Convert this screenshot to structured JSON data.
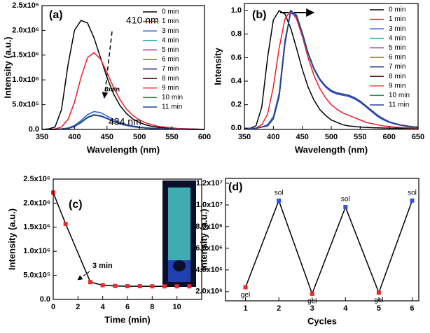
{
  "chart_data": [
    {
      "type": "line",
      "panel_label": "(a)",
      "x_label": "Wavelength (nm)",
      "y_label": "Intensity (a.u.)",
      "annotations": [
        "410 nm",
        "434 nm",
        "3min"
      ],
      "legend": "upper right",
      "x": [
        350,
        360,
        370,
        380,
        390,
        400,
        410,
        420,
        430,
        440,
        450,
        460,
        470,
        480,
        490,
        500,
        510,
        520,
        530,
        540,
        550,
        560,
        570,
        580,
        590,
        600
      ],
      "xlim": [
        350,
        600
      ],
      "xticks": [
        350,
        400,
        450,
        500,
        550,
        600
      ],
      "ylim": [
        0,
        2500000.0
      ],
      "yticks": [
        {
          "value": 0,
          "label": "0.0"
        },
        {
          "value": 500000.0,
          "label": "5.0x10⁵"
        },
        {
          "value": 1000000.0,
          "label": "1.0x10⁶"
        },
        {
          "value": 1500000.0,
          "label": "1.5x10⁶"
        },
        {
          "value": 2000000.0,
          "label": "2.0x10⁶"
        },
        {
          "value": 2500000.0,
          "label": "2.5x10⁶"
        }
      ],
      "series": [
        {
          "name": "0 min",
          "color": "#000000",
          "values": [
            0,
            10000.0,
            50000.0,
            400000.0,
            1300000.0,
            2000000.0,
            2200000.0,
            2150000.0,
            1850000.0,
            1450000.0,
            1050000.0,
            720000.0,
            480000.0,
            320000.0,
            210000.0,
            140000.0,
            90000.0,
            60000.0,
            40000.0,
            30000.0,
            20000.0,
            15000.0,
            10000.0,
            10000.0,
            5000.0,
            0
          ]
        },
        {
          "name": "1 min",
          "color": "#ee1c24",
          "values": [
            0,
            0,
            10000.0,
            50000.0,
            200000.0,
            550000.0,
            1050000.0,
            1450000.0,
            1550000.0,
            1420000.0,
            1150000.0,
            850000.0,
            600000.0,
            410000.0,
            280000.0,
            190000.0,
            130000.0,
            90000.0,
            60000.0,
            45000.0,
            30000.0,
            20000.0,
            15000.0,
            10000.0,
            5000.0,
            0
          ]
        },
        {
          "name": "3 min",
          "color": "#2b55e6",
          "values": [
            0,
            0,
            0,
            10000.0,
            30000.0,
            80000.0,
            180000.0,
            300000.0,
            360000.0,
            340000.0,
            270000.0,
            200000.0,
            140000.0,
            100000.0,
            70000.0,
            50000.0,
            35000.0,
            25000.0,
            18000.0,
            13000.0,
            10000.0,
            7000.0,
            5000.0,
            3000.0,
            2000.0,
            0
          ]
        },
        {
          "name": "4 min",
          "color": "#1aa5a5",
          "values": [
            0,
            0,
            0,
            10000.0,
            20000.0,
            60000.0,
            150000.0,
            250000.0,
            300000.0,
            280000.0,
            230000.0,
            170000.0,
            120000.0,
            85000.0,
            60000.0,
            42000.0,
            30000.0,
            21000.0,
            15000.0,
            11000.0,
            8000.0,
            6000.0,
            4000.0,
            2000.0,
            1000.0,
            0
          ]
        },
        {
          "name": "5 min",
          "color": "#9b30a0",
          "values": [
            0,
            0,
            0,
            10000.0,
            20000.0,
            60000.0,
            140000.0,
            240000.0,
            290000.0,
            270000.0,
            220000.0,
            160000.0,
            110000.0,
            80000.0,
            55000.0,
            40000.0,
            28000.0,
            20000.0,
            14000.0,
            10000.0,
            8000.0,
            5000.0,
            4000.0,
            2000.0,
            1000.0,
            0
          ]
        },
        {
          "name": "6 min",
          "color": "#808000",
          "values": [
            0,
            0,
            0,
            10000.0,
            20000.0,
            60000.0,
            140000.0,
            240000.0,
            290000.0,
            270000.0,
            220000.0,
            160000.0,
            110000.0,
            80000.0,
            55000.0,
            40000.0,
            28000.0,
            20000.0,
            14000.0,
            10000.0,
            8000.0,
            5000.0,
            4000.0,
            2000.0,
            1000.0,
            0
          ]
        },
        {
          "name": "7 min",
          "color": "#1c2a8c",
          "values": [
            0,
            0,
            0,
            10000.0,
            20000.0,
            60000.0,
            140000.0,
            240000.0,
            290000.0,
            270000.0,
            220000.0,
            160000.0,
            110000.0,
            80000.0,
            55000.0,
            40000.0,
            28000.0,
            20000.0,
            14000.0,
            10000.0,
            8000.0,
            5000.0,
            4000.0,
            2000.0,
            1000.0,
            0
          ]
        },
        {
          "name": "8 min",
          "color": "#5a1010",
          "values": [
            0,
            0,
            0,
            10000.0,
            20000.0,
            60000.0,
            140000.0,
            240000.0,
            290000.0,
            270000.0,
            220000.0,
            160000.0,
            110000.0,
            80000.0,
            55000.0,
            40000.0,
            28000.0,
            20000.0,
            14000.0,
            10000.0,
            8000.0,
            5000.0,
            4000.0,
            2000.0,
            1000.0,
            0
          ]
        },
        {
          "name": "9 min",
          "color": "#ff3a3a",
          "values": [
            0,
            0,
            0,
            10000.0,
            20000.0,
            60000.0,
            140000.0,
            240000.0,
            290000.0,
            270000.0,
            220000.0,
            160000.0,
            110000.0,
            80000.0,
            55000.0,
            40000.0,
            28000.0,
            20000.0,
            14000.0,
            10000.0,
            8000.0,
            5000.0,
            4000.0,
            2000.0,
            1000.0,
            0
          ]
        },
        {
          "name": "10 min",
          "color": "#2e8b57",
          "values": [
            0,
            0,
            0,
            10000.0,
            20000.0,
            60000.0,
            140000.0,
            240000.0,
            290000.0,
            270000.0,
            220000.0,
            160000.0,
            110000.0,
            80000.0,
            55000.0,
            40000.0,
            28000.0,
            20000.0,
            14000.0,
            10000.0,
            8000.0,
            5000.0,
            4000.0,
            2000.0,
            1000.0,
            0
          ]
        },
        {
          "name": "11 min",
          "color": "#24408f",
          "values": [
            0,
            0,
            0,
            10000.0,
            20000.0,
            60000.0,
            140000.0,
            240000.0,
            290000.0,
            270000.0,
            220000.0,
            160000.0,
            110000.0,
            80000.0,
            55000.0,
            40000.0,
            28000.0,
            20000.0,
            14000.0,
            10000.0,
            8000.0,
            5000.0,
            4000.0,
            2000.0,
            1000.0,
            0
          ]
        }
      ]
    },
    {
      "type": "line",
      "panel_label": "(b)",
      "x_label": "Wavelength (nm)",
      "y_label": "Intensity",
      "legend": "upper right",
      "x": [
        350,
        360,
        370,
        380,
        390,
        400,
        410,
        420,
        430,
        440,
        450,
        460,
        470,
        480,
        490,
        500,
        510,
        520,
        530,
        540,
        550,
        560,
        570,
        580,
        590,
        600,
        610,
        620,
        630,
        640,
        650
      ],
      "xlim": [
        350,
        650
      ],
      "xticks": [
        350,
        400,
        450,
        500,
        550,
        600,
        650
      ],
      "ylim": [
        -0.01,
        1.06
      ],
      "yticks": [
        {
          "value": 0,
          "label": "0.0"
        },
        0.2,
        0.4,
        0.6,
        0.8,
        {
          "value": 1,
          "label": "1.0"
        }
      ],
      "series": [
        {
          "name": "0 min",
          "color": "#000000",
          "values": [
            0,
            0,
            0.02,
            0.18,
            0.6,
            0.92,
            1,
            0.97,
            0.85,
            0.68,
            0.5,
            0.35,
            0.24,
            0.16,
            0.11,
            0.07,
            0.05,
            0.03,
            0.02,
            0.015,
            0.01,
            0.007,
            0.005,
            0.003,
            0.002,
            0.001,
            0,
            0,
            0,
            0,
            0
          ]
        },
        {
          "name": "1 min",
          "color": "#ee1c24",
          "values": [
            0,
            0,
            0,
            0.03,
            0.12,
            0.35,
            0.68,
            0.93,
            1,
            0.93,
            0.78,
            0.6,
            0.45,
            0.34,
            0.26,
            0.2,
            0.16,
            0.13,
            0.11,
            0.09,
            0.07,
            0.05,
            0.04,
            0.03,
            0.02,
            0.015,
            0.01,
            0.007,
            0.005,
            0.003,
            0.002
          ]
        },
        {
          "name": "3 min",
          "color": "#2b55e6",
          "values": [
            0,
            0,
            0,
            0.01,
            0.03,
            0.1,
            0.3,
            0.75,
            0.98,
            0.95,
            0.8,
            0.63,
            0.5,
            0.41,
            0.35,
            0.31,
            0.29,
            0.28,
            0.27,
            0.25,
            0.22,
            0.18,
            0.14,
            0.1,
            0.07,
            0.05,
            0.035,
            0.025,
            0.017,
            0.012,
            0.008
          ]
        },
        {
          "name": "4 min",
          "color": "#1aa5a5",
          "values": [
            0,
            0,
            0,
            0.01,
            0.02,
            0.09,
            0.28,
            0.73,
            1,
            0.96,
            0.8,
            0.63,
            0.5,
            0.42,
            0.36,
            0.32,
            0.3,
            0.29,
            0.28,
            0.26,
            0.23,
            0.19,
            0.15,
            0.11,
            0.08,
            0.055,
            0.04,
            0.028,
            0.02,
            0.013,
            0.009
          ]
        },
        {
          "name": "5 min",
          "color": "#9b30a0",
          "values": [
            0,
            0,
            0,
            0.01,
            0.02,
            0.08,
            0.27,
            0.72,
            1,
            0.96,
            0.81,
            0.64,
            0.51,
            0.42,
            0.36,
            0.32,
            0.3,
            0.29,
            0.28,
            0.26,
            0.23,
            0.19,
            0.15,
            0.11,
            0.08,
            0.055,
            0.04,
            0.028,
            0.02,
            0.013,
            0.009
          ]
        },
        {
          "name": "6 min",
          "color": "#808000",
          "values": [
            0,
            0,
            0,
            0.01,
            0.02,
            0.08,
            0.27,
            0.72,
            1,
            0.96,
            0.81,
            0.64,
            0.51,
            0.42,
            0.36,
            0.32,
            0.3,
            0.29,
            0.28,
            0.26,
            0.23,
            0.19,
            0.15,
            0.11,
            0.08,
            0.055,
            0.04,
            0.028,
            0.02,
            0.013,
            0.009
          ]
        },
        {
          "name": "7 min",
          "color": "#1c2a8c",
          "values": [
            0,
            0,
            0,
            0.01,
            0.02,
            0.08,
            0.27,
            0.72,
            1,
            0.96,
            0.81,
            0.64,
            0.51,
            0.42,
            0.36,
            0.32,
            0.3,
            0.29,
            0.28,
            0.26,
            0.23,
            0.19,
            0.15,
            0.11,
            0.08,
            0.055,
            0.04,
            0.028,
            0.02,
            0.013,
            0.009
          ]
        },
        {
          "name": "8 min",
          "color": "#5a1010",
          "values": [
            0,
            0,
            0,
            0.01,
            0.02,
            0.08,
            0.27,
            0.72,
            1,
            0.96,
            0.81,
            0.64,
            0.51,
            0.42,
            0.36,
            0.32,
            0.3,
            0.29,
            0.28,
            0.26,
            0.23,
            0.19,
            0.15,
            0.11,
            0.08,
            0.055,
            0.04,
            0.028,
            0.02,
            0.013,
            0.009
          ]
        },
        {
          "name": "9 min",
          "color": "#ff3a3a",
          "values": [
            0,
            0,
            0,
            0.01,
            0.02,
            0.08,
            0.27,
            0.72,
            1,
            0.96,
            0.81,
            0.64,
            0.51,
            0.42,
            0.36,
            0.32,
            0.3,
            0.29,
            0.28,
            0.26,
            0.23,
            0.19,
            0.15,
            0.11,
            0.08,
            0.055,
            0.04,
            0.028,
            0.02,
            0.013,
            0.009
          ]
        },
        {
          "name": "10 min",
          "color": "#2e8b57",
          "values": [
            0,
            0,
            0,
            0.01,
            0.02,
            0.08,
            0.27,
            0.72,
            1,
            0.96,
            0.81,
            0.64,
            0.51,
            0.42,
            0.36,
            0.32,
            0.3,
            0.29,
            0.28,
            0.26,
            0.23,
            0.19,
            0.15,
            0.11,
            0.08,
            0.055,
            0.04,
            0.028,
            0.02,
            0.013,
            0.009
          ]
        },
        {
          "name": "11 min",
          "color": "#24408f",
          "values": [
            0,
            0,
            0,
            0.01,
            0.02,
            0.08,
            0.27,
            0.72,
            1,
            0.96,
            0.81,
            0.64,
            0.51,
            0.42,
            0.36,
            0.32,
            0.3,
            0.29,
            0.28,
            0.26,
            0.23,
            0.19,
            0.15,
            0.11,
            0.08,
            0.055,
            0.04,
            0.028,
            0.02,
            0.013,
            0.009
          ]
        }
      ]
    },
    {
      "type": "line",
      "panel_label": "(c)",
      "x_label": "Time (min)",
      "y_label": "Intensity (a.u.)",
      "annotations": [
        "3 min"
      ],
      "color": "#000000",
      "marker_color": "#ee2a2a",
      "x": [
        0,
        1,
        3,
        4,
        5,
        6,
        7,
        8,
        9,
        10,
        11
      ],
      "values": [
        2220000.0,
        1570000.0,
        360000.0,
        295000.0,
        280000.0,
        275000.0,
        275000.0,
        272000.0,
        272000.0,
        272000.0,
        272000.0
      ],
      "xlim": [
        0,
        12
      ],
      "xticks": [
        0,
        2,
        4,
        6,
        8,
        10
      ],
      "ylim": [
        0,
        2500000.0
      ],
      "yticks": [
        {
          "value": 0,
          "label": "0.0"
        },
        {
          "value": 500000.0,
          "label": "5.0x10⁵"
        },
        {
          "value": 1000000.0,
          "label": "1.0x10⁶"
        },
        {
          "value": 1500000.0,
          "label": "1.5x10⁶"
        },
        {
          "value": 2000000.0,
          "label": "2.0x10⁶"
        },
        {
          "value": 2500000.0,
          "label": "2.5x10⁶"
        }
      ]
    },
    {
      "type": "line",
      "panel_label": "(d)",
      "x_label": "Cycles",
      "y_label": "Intensity (a.u.)",
      "color": "#000000",
      "marker_colors": [
        "#ee2a2a",
        "#2b55e6",
        "#ee2a2a",
        "#2b55e6",
        "#ee2a2a",
        "#2b55e6"
      ],
      "x": [
        1,
        2,
        3,
        4,
        5,
        6
      ],
      "values": [
        2400000.0,
        10400000.0,
        1800000.0,
        9800000.0,
        1900000.0,
        10400000.0
      ],
      "point_labels": [
        "gel",
        "sol",
        "gel",
        "sol",
        "gel",
        "sol"
      ],
      "xlim": [
        0.4,
        6.2
      ],
      "xticks": [
        1,
        2,
        3,
        4,
        5,
        6
      ],
      "ylim": [
        1150000.0,
        12450000.0
      ],
      "yticks": [
        {
          "value": 2000000.0,
          "label": "2.0x10⁶"
        },
        {
          "value": 4000000.0,
          "label": "4.0x10⁶"
        },
        {
          "value": 6000000.0,
          "label": "6.0x10⁶"
        },
        {
          "value": 8000000.0,
          "label": "8.0x10⁶"
        },
        {
          "value": 10000000.0,
          "label": "1.0x10⁷"
        },
        {
          "value": 12000000.0,
          "label": "1.2x10⁷"
        }
      ]
    }
  ]
}
